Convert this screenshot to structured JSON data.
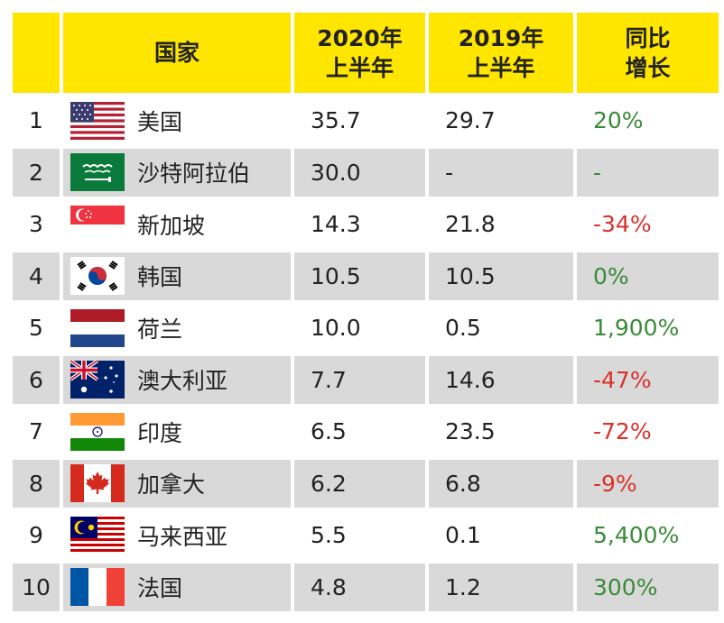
{
  "chart_data": {
    "type": "table",
    "columns": [
      "",
      "国家",
      "2020年上半年",
      "2019年上半年",
      "同比增长"
    ],
    "header": {
      "country": "国家",
      "h2020_line1": "2020年",
      "h2020_line2": "上半年",
      "h2019_line1": "2019年",
      "h2019_line2": "上半年",
      "growth_line1": "同比",
      "growth_line2": "增长"
    },
    "rows": [
      {
        "rank": "1",
        "country": "美国",
        "flag": "usa-flag",
        "v2020": "35.7",
        "v2019": "29.7",
        "growth": "20%",
        "trend": "pos"
      },
      {
        "rank": "2",
        "country": "沙特阿拉伯",
        "flag": "saudi-arabia-flag",
        "v2020": "30.0",
        "v2019": "-",
        "growth": "-",
        "trend": "pos"
      },
      {
        "rank": "3",
        "country": "新加坡",
        "flag": "singapore-flag",
        "v2020": "14.3",
        "v2019": "21.8",
        "growth": "-34%",
        "trend": "neg"
      },
      {
        "rank": "4",
        "country": "韩国",
        "flag": "south-korea-flag",
        "v2020": "10.5",
        "v2019": "10.5",
        "growth": "0%",
        "trend": "pos"
      },
      {
        "rank": "5",
        "country": "荷兰",
        "flag": "netherlands-flag",
        "v2020": "10.0",
        "v2019": "0.5",
        "growth": "1,900%",
        "trend": "pos"
      },
      {
        "rank": "6",
        "country": "澳大利亚",
        "flag": "australia-flag",
        "v2020": "7.7",
        "v2019": "14.6",
        "growth": "-47%",
        "trend": "neg"
      },
      {
        "rank": "7",
        "country": "印度",
        "flag": "india-flag",
        "v2020": "6.5",
        "v2019": "23.5",
        "growth": "-72%",
        "trend": "neg"
      },
      {
        "rank": "8",
        "country": "加拿大",
        "flag": "canada-flag",
        "v2020": "6.2",
        "v2019": "6.8",
        "growth": "-9%",
        "trend": "neg"
      },
      {
        "rank": "9",
        "country": "马来西亚",
        "flag": "malaysia-flag",
        "v2020": "5.5",
        "v2019": "0.1",
        "growth": "5,400%",
        "trend": "pos"
      },
      {
        "rank": "10",
        "country": "法国",
        "flag": "france-flag",
        "v2020": "4.8",
        "v2019": "1.2",
        "growth": "300%",
        "trend": "pos"
      }
    ],
    "colors": {
      "header_bg": "#ffe600",
      "shade_bg": "#d9d9d9",
      "positive": "#3a8a3a",
      "negative": "#d9322c"
    }
  }
}
